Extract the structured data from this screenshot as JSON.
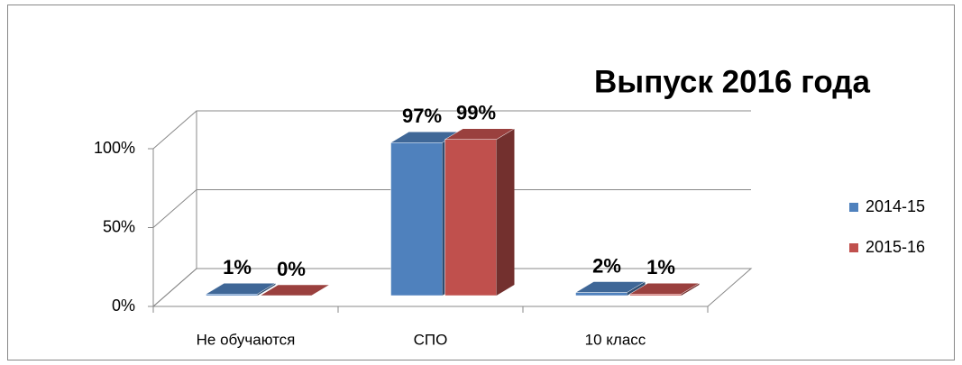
{
  "chart_data": {
    "type": "bar3d",
    "title": "Выпуск 2016 года",
    "categories": [
      "Не обучаются",
      "СПО",
      "10 класс"
    ],
    "series": [
      {
        "name": "2014-15",
        "color": "#4f81bd",
        "values": [
          1,
          97,
          2
        ],
        "value_labels": [
          "1%",
          "97%",
          "2%"
        ]
      },
      {
        "name": "2015-16",
        "color": "#c0504d",
        "values": [
          0,
          99,
          1
        ],
        "value_labels": [
          "0%",
          "99%",
          "1%"
        ]
      }
    ],
    "ylim": [
      0,
      100
    ],
    "yticks": [
      {
        "value": 0,
        "label": "0%"
      },
      {
        "value": 50,
        "label": "50%"
      },
      {
        "value": 100,
        "label": "100%"
      }
    ],
    "grid": true,
    "legend": "right"
  }
}
